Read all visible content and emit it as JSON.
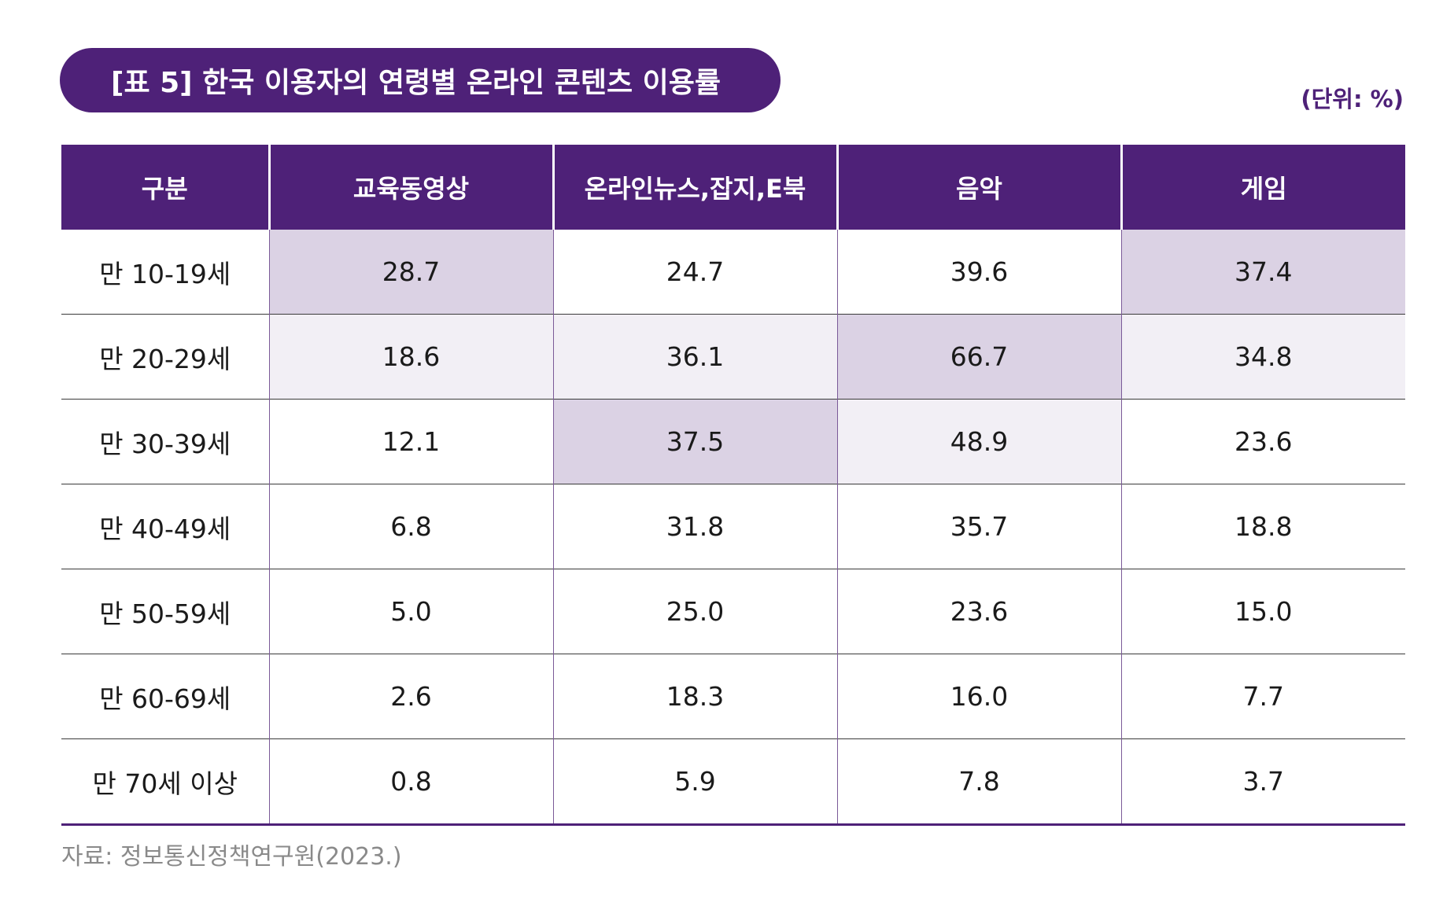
{
  "title": "[표 5] 한국 이용자의 연령별 온라인 콘텐츠 이용률",
  "unit": "(단위: %)",
  "table": {
    "headers": [
      "구분",
      "교육동영상",
      "온라인뉴스,잡지,E북",
      "음악",
      "게임"
    ],
    "rows": [
      {
        "label": "만 10-19세",
        "values": [
          "28.7",
          "24.7",
          "39.6",
          "37.4"
        ]
      },
      {
        "label": "만 20-29세",
        "values": [
          "18.6",
          "36.1",
          "66.7",
          "34.8"
        ]
      },
      {
        "label": "만 30-39세",
        "values": [
          "12.1",
          "37.5",
          "48.9",
          "23.6"
        ]
      },
      {
        "label": "만 40-49세",
        "values": [
          "6.8",
          "31.8",
          "35.7",
          "18.8"
        ]
      },
      {
        "label": "만 50-59세",
        "values": [
          "5.0",
          "25.0",
          "23.6",
          "15.0"
        ]
      },
      {
        "label": "만 60-69세",
        "values": [
          "2.6",
          "18.3",
          "16.0",
          "7.7"
        ]
      },
      {
        "label": "만 70세 이상",
        "values": [
          "0.8",
          "5.9",
          "7.8",
          "3.7"
        ]
      }
    ]
  },
  "highlight_colors": {
    "strong": "#dbd2e4",
    "light": "#f2eff5",
    "header": "#4e2178"
  },
  "source": "자료: 정보통신정책연구원(2023.)"
}
